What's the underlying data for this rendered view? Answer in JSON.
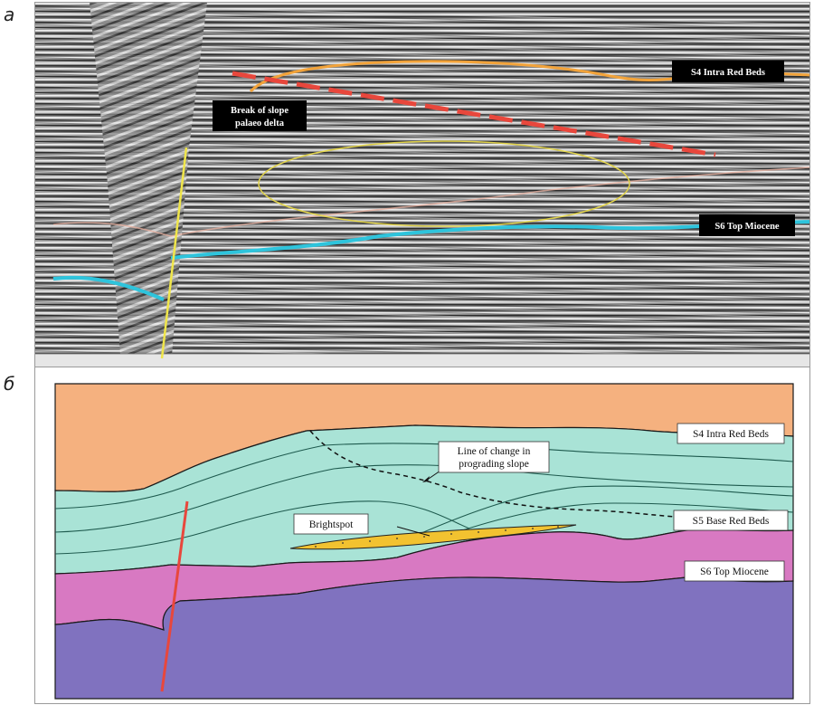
{
  "panels": {
    "a": {
      "letter": "а",
      "labels": {
        "s4": "S4 Intra Red Beds",
        "break_line1": "Break of slope",
        "break_line2": "palaeo delta",
        "s6": "S6 Top Miocene"
      },
      "colors": {
        "background": "#8c8c8c",
        "s4_horizon": "#f2a33a",
        "s6_horizon": "#2ec4dc",
        "dashed_line": "#e8473c",
        "fault": "#f0e64a",
        "ellipse": "#e0d24a",
        "label_box": "#000000"
      }
    },
    "b": {
      "letter": "б",
      "labels": {
        "s4": "S4 Intra Red Beds",
        "line_change_1": "Line of change in",
        "line_change_2": "prograding slope",
        "s5": "S5 Base Red Beds",
        "brightspot": "Brightspot",
        "s6": "S6 Top Miocene"
      },
      "colors": {
        "top_unit": "#f5b17f",
        "red_beds": "#a9e3d6",
        "miocene": "#d879c2",
        "basement": "#8072bf",
        "brightspot": "#f2c230",
        "fault": "#e8473c"
      }
    }
  }
}
